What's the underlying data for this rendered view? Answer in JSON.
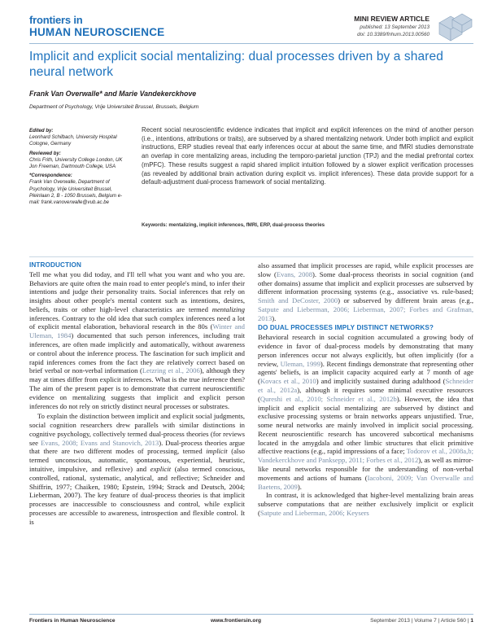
{
  "header": {
    "logo_top": "frontiers in",
    "logo_bottom": "HUMAN NEUROSCIENCE",
    "article_type": "MINI REVIEW ARTICLE",
    "published": "published: 13 September 2013",
    "doi": "doi: 10.3389/fnhum.2013.00560",
    "accent_color": "#1e73be"
  },
  "title": "Implicit and explicit social mentalizing: dual processes driven by a shared neural network",
  "authors": "Frank Van Overwalle* and Marie Vandekerckhove",
  "affiliation": "Department of Psychology, Vrije Universiteit Brussel, Brussels, Belgium",
  "sidebar": {
    "edited_by_heading": "Edited by:",
    "edited_by": "Leonhard Schilbach, University Hospital Cologne, Germany",
    "reviewed_by_heading": "Reviewed by:",
    "reviewer_1": "Chris Frith, University College London, UK",
    "reviewer_2": "Jon Freeman, Dartmouth College, USA",
    "correspondence_heading": "*Correspondence:",
    "correspondence": "Frank Van Overwalle, Department of Psychology, Vrije Universiteit Brussel, Pleinlaan 2, B - 1050 Brussels, Belgium e-mail: frank.vanoverwalle@vub.ac.be"
  },
  "abstract": "Recent social neuroscientific evidence indicates that implicit and explicit inferences on the mind of another person (i.e., intentions, attributions or traits), are subserved by a shared mentalizing network. Under both implicit and explicit instructions, ERP studies reveal that early inferences occur at about the same time, and fMRI studies demonstrate an overlap in core mentalizing areas, including the temporo-parietal junction (TPJ) and the medial prefrontal cortex (mPFC). These results suggest a rapid shared implicit intuition followed by a slower explicit verification processes (as revealed by additional brain activation during explicit vs. implicit inferences). These data provide support for a default-adjustment dual-process framework of social mentalizing.",
  "keywords_label": "Keywords:",
  "keywords": "mentalizing, implicit inferences, fMRI, ERP, dual-process theories",
  "body": {
    "intro_heading": "INTRODUCTION",
    "intro_p1_a": "Tell me what you did today, and I'll tell what you want and who you are. Behaviors are quite often the main road to enter people's mind, to infer their intentions and judge their personality traits. Social inferences that rely on insights about other people's mental content such as intentions, desires, beliefs, traits or other high-level characteristics are termed ",
    "intro_p1_em": "mentalizing",
    "intro_p1_b": " inferences. Contrary to the old idea that such complex inferences need a lot of explicit mental elaboration, behavioral research in the 80s (",
    "cite_winter": "Winter and Uleman, 1984",
    "intro_p1_c": ") documented that such person inferences, including trait inferences, are often made implicitly and automatically, without awareness or control about the inference process. The fascination for such implicit and rapid inferences comes from the fact they are relatively correct based on brief verbal or non-verbal information (",
    "cite_letzring": "Letzring et al., 2006",
    "intro_p1_d": "), although they may at times differ from explicit inferences. What is the true inference then? The aim of the present paper is to demonstrate that current neuroscientific evidence on mentalizing suggests that implicit and explicit person inferences do not rely on strictly distinct neural processes or substrates.",
    "intro_p2_a": "To explain the distinction between implicit and explicit social judgments, social cognition researchers drew parallels with similar distinctions in cognitive psychology, collectively termed dual-process theories (for reviews see ",
    "cite_evans": "Evans, 2008; Evans and Stanovich, 2013",
    "intro_p2_b": "). Dual-process theories argue that there are two different modes of processing, termed ",
    "intro_p2_em1": "implicit",
    "intro_p2_c": " (also termed unconscious, automatic, spontaneous, experiential, heuristic, intuitive, impulsive, and reflexive) and ",
    "intro_p2_em2": "explicit",
    "intro_p2_d": " (also termed conscious, controlled, rational, systematic, analytical, and reflective; Schneider and Shiffrin, 1977; Chaiken, 1980; Epstein, 1994; Strack and Deutsch, 2004; Lieberman, 2007). The key feature of dual-process theories is that implicit processes are inaccessible to consciousness and control, while explicit processes are accessible to awareness, introspection and flexible control. It is",
    "right_p1_a": "also assumed that implicit processes are rapid, while explicit processes are slow (",
    "cite_evans2008": "Evans, 2008",
    "right_p1_b": "). Some dual-process theorists in social cognition (and other domains) assume that implicit and explicit processes are subserved by different information processing systems (e.g., associative vs. rule-based; ",
    "cite_smith": "Smith and DeCoster, 2000",
    "right_p1_c": ") or subserved by different brain areas (e.g., ",
    "cite_satpute": "Satpute and Lieberman, 2006; Lieberman, 2007; Forbes and Grafman, 2013",
    "right_p1_d": ").",
    "dual_heading": "DO DUAL PROCESSES IMPLY DISTINCT NETWORKS?",
    "dual_p1_a": "Behavioral research in social cognition accumulated a growing body of evidence in favor of dual-process models by demonstrating that many person inferences occur not always explicitly, but often implicitly (for a review, ",
    "cite_uleman": "Uleman, 1999",
    "dual_p1_b": "). Recent findings demonstrate that representing other agents' beliefs, is an implicit capacity acquired early at 7 month of age (",
    "cite_kovacs": "Kovacs et al., 2010",
    "dual_p1_c": ") and implicitly sustained during adulthood (",
    "cite_schneider": "Schneider et al., 2012a",
    "dual_p1_d": "), although it requires some minimal executive resources (",
    "cite_qureshi": "Qureshi et al., 2010; Schneider et al., 2012b",
    "dual_p1_e": "). However, the idea that implicit and explicit social mentalizing are subserved by distinct and exclusive processing systems or brain networks appears unjustified. True, some neural networks are mainly involved in implicit social processing. Recent neuroscientific research has uncovered subcortical mechanisms located in the amygdala and other limbic structures that elicit primitive affective reactions (e.g., rapid impressions of a face; ",
    "cite_todorov": "Todorov et al., 2008a,b; Vandekerckhove and Panksepp, 2011; Forbes et al., 2012",
    "dual_p1_f": "), as well as mirror-like neural networks responsible for the understanding of non-verbal movements and actions of humans (",
    "cite_iacoboni": "Iacoboni, 2009; Van Overwalle and Baetens, 2009",
    "dual_p1_g": ").",
    "dual_p2_a": "In contrast, it is acknowledged that higher-level mentalizing brain areas subserve computations that are neither exclusively implicit or explicit (",
    "cite_satpute2": "Satpute and Lieberman, 2006; Keysers"
  },
  "footer": {
    "journal": "Frontiers in Human Neuroscience",
    "url": "www.frontiersin.org",
    "issue": "September 2013 | Volume 7 | Article 560 |",
    "page": "1"
  }
}
